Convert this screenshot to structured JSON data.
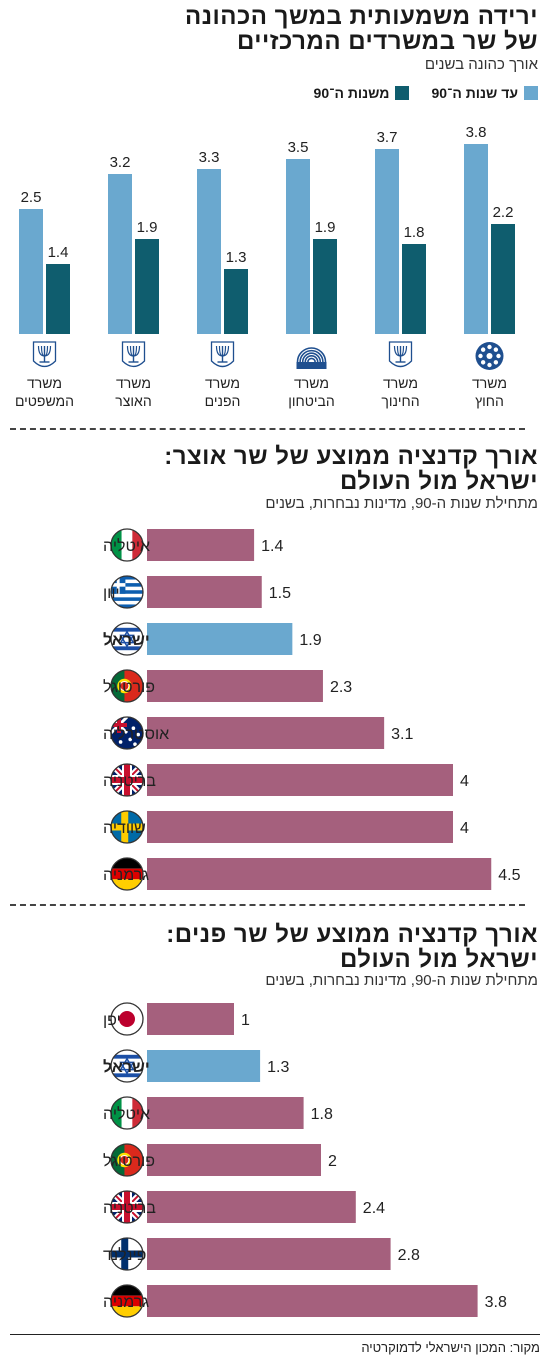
{
  "colors": {
    "before90": "#6aa8cf",
    "since90": "#0f5d6e",
    "world_bar": "#a5607d",
    "israel_bar": "#6aa8cf"
  },
  "chart1": {
    "title_line1": "ירידה משמעותית במשך הכהונה",
    "title_line2": "של שר במשרדים המרכזיים",
    "subtitle": "אורך כהונה בשנים",
    "legend_before": "עד שנות ה־90",
    "legend_since": "משנות ה־90"
  },
  "chart2": {
    "title_line1": "אורך קדנציה ממוצע של שר אוצר:",
    "title_line2": "ישראל מול העולם",
    "subtitle": "מתחילת שנות ה-90, מדינות נבחרות, בשנים"
  },
  "chart3": {
    "title_line1": "אורך קדנציה ממוצע של שר פנים:",
    "title_line2": "ישראל מול העולם",
    "subtitle": "מתחילת שנות ה-90, מדינות נבחרות, בשנים"
  },
  "source": "מקור: המכון הישראלי לדמוקרטיה",
  "chart_data": [
    {
      "type": "bar",
      "categories": [
        "משרד החוץ",
        "משרד החינוך",
        "משרד הביטחון",
        "משרד הפנים",
        "משרד האוצר",
        "משרד המשפטים"
      ],
      "category_lines": [
        [
          "משרד",
          "החוץ"
        ],
        [
          "משרד",
          "החינוך"
        ],
        [
          "משרד",
          "הביטחון"
        ],
        [
          "משרד",
          "הפנים"
        ],
        [
          "משרד",
          "האוצר"
        ],
        [
          "משרד",
          "המשפטים"
        ]
      ],
      "icons": [
        "foreign-ministry-logo-icon",
        "menorah-emblem-icon",
        "defense-ministry-logo-icon",
        "menorah-emblem-icon",
        "menorah-emblem-icon",
        "menorah-emblem-icon"
      ],
      "series": [
        {
          "name": "עד שנות ה־90",
          "values": [
            3.8,
            3.7,
            3.5,
            3.3,
            3.2,
            2.5
          ]
        },
        {
          "name": "משנות ה־90",
          "values": [
            2.2,
            1.8,
            1.9,
            1.3,
            1.9,
            1.4
          ]
        }
      ]
    },
    {
      "type": "bar",
      "orientation": "horizontal",
      "categories": [
        "איטליה",
        "יוון",
        "ישראל",
        "פורטוגל",
        "אוסטרליה",
        "בריטניה",
        "שוודיה",
        "גרמניה"
      ],
      "values": [
        1.4,
        1.5,
        1.9,
        2.3,
        3.1,
        4,
        4,
        4.5
      ],
      "flags": [
        "italy",
        "greece",
        "israel",
        "portugal",
        "australia",
        "uk",
        "sweden",
        "germany"
      ],
      "highlight": "ישראל"
    },
    {
      "type": "bar",
      "orientation": "horizontal",
      "categories": [
        "יפן",
        "ישראל",
        "איטליה",
        "פורטוגל",
        "בריטניה",
        "פינלנד",
        "גרמניה"
      ],
      "values": [
        1,
        1.3,
        1.8,
        2,
        2.4,
        2.8,
        3.8
      ],
      "flags": [
        "japan",
        "israel",
        "italy",
        "portugal",
        "uk",
        "finland",
        "germany"
      ],
      "highlight": "ישראל"
    }
  ]
}
